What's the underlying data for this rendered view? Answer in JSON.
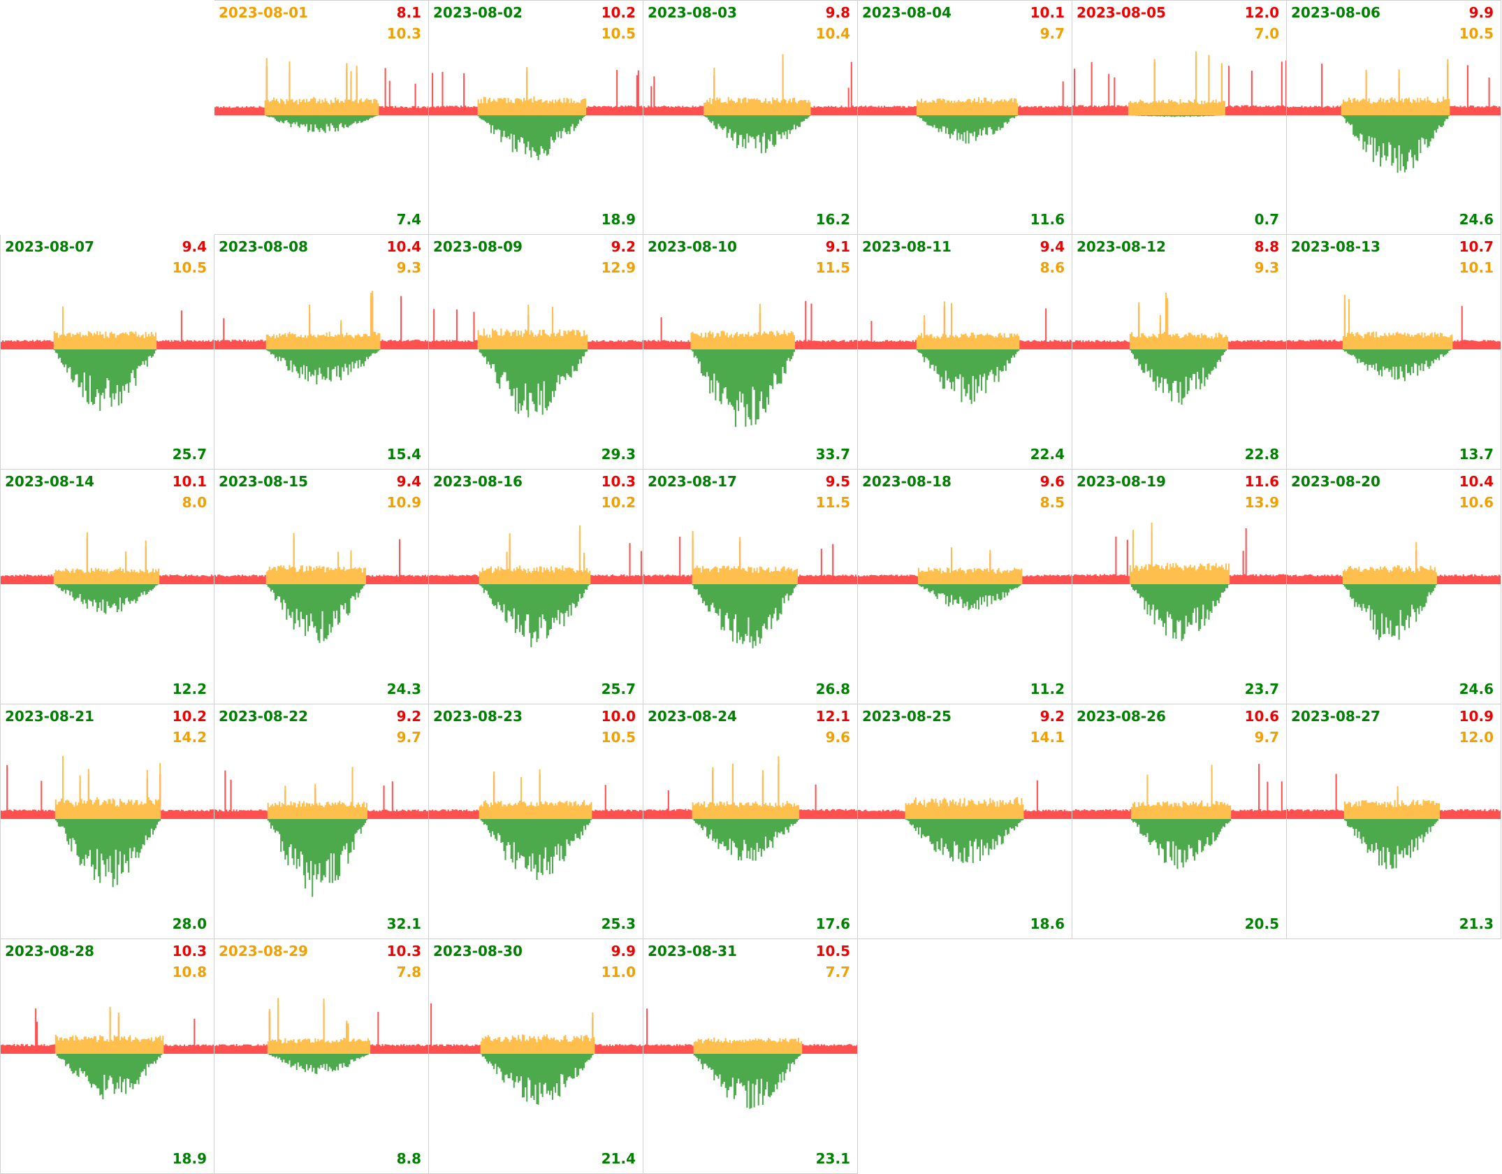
{
  "colors": {
    "consumption": "#ff5050",
    "self_consumption": "#ffbf4d",
    "production": "#4caa4c",
    "label_red": "#ee0000",
    "label_orange": "#f0a000",
    "label_green": "#008000",
    "grid_line": "#d0d0d0"
  },
  "chart_data": {
    "type": "area",
    "layout": "calendar-grid",
    "month": "2023-08",
    "columns": 7,
    "first_day_column": 1,
    "metrics": [
      "red_value",
      "orange_value",
      "green_value"
    ],
    "days": [
      {
        "date": "2023-08-01",
        "date_color": "orange",
        "red": "8.1",
        "orange": "10.3",
        "green": "7.4"
      },
      {
        "date": "2023-08-02",
        "date_color": "green",
        "red": "10.2",
        "orange": "10.5",
        "green": "18.9"
      },
      {
        "date": "2023-08-03",
        "date_color": "green",
        "red": "9.8",
        "orange": "10.4",
        "green": "16.2"
      },
      {
        "date": "2023-08-04",
        "date_color": "green",
        "red": "10.1",
        "orange": "9.7",
        "green": "11.6"
      },
      {
        "date": "2023-08-05",
        "date_color": "red",
        "red": "12.0",
        "orange": "7.0",
        "green": "0.7"
      },
      {
        "date": "2023-08-06",
        "date_color": "green",
        "red": "9.9",
        "orange": "10.5",
        "green": "24.6"
      },
      {
        "date": "2023-08-07",
        "date_color": "green",
        "red": "9.4",
        "orange": "10.5",
        "green": "25.7"
      },
      {
        "date": "2023-08-08",
        "date_color": "green",
        "red": "10.4",
        "orange": "9.3",
        "green": "15.4"
      },
      {
        "date": "2023-08-09",
        "date_color": "green",
        "red": "9.2",
        "orange": "12.9",
        "green": "29.3"
      },
      {
        "date": "2023-08-10",
        "date_color": "green",
        "red": "9.1",
        "orange": "11.5",
        "green": "33.7"
      },
      {
        "date": "2023-08-11",
        "date_color": "green",
        "red": "9.4",
        "orange": "8.6",
        "green": "22.4"
      },
      {
        "date": "2023-08-12",
        "date_color": "green",
        "red": "8.8",
        "orange": "9.3",
        "green": "22.8"
      },
      {
        "date": "2023-08-13",
        "date_color": "green",
        "red": "10.7",
        "orange": "10.1",
        "green": "13.7"
      },
      {
        "date": "2023-08-14",
        "date_color": "green",
        "red": "10.1",
        "orange": "8.0",
        "green": "12.2"
      },
      {
        "date": "2023-08-15",
        "date_color": "green",
        "red": "9.4",
        "orange": "10.9",
        "green": "24.3"
      },
      {
        "date": "2023-08-16",
        "date_color": "green",
        "red": "10.3",
        "orange": "10.2",
        "green": "25.7"
      },
      {
        "date": "2023-08-17",
        "date_color": "green",
        "red": "9.5",
        "orange": "11.5",
        "green": "26.8"
      },
      {
        "date": "2023-08-18",
        "date_color": "green",
        "red": "9.6",
        "orange": "8.5",
        "green": "11.2"
      },
      {
        "date": "2023-08-19",
        "date_color": "green",
        "red": "11.6",
        "orange": "13.9",
        "green": "23.7"
      },
      {
        "date": "2023-08-20",
        "date_color": "green",
        "red": "10.4",
        "orange": "10.6",
        "green": "24.6"
      },
      {
        "date": "2023-08-21",
        "date_color": "green",
        "red": "10.2",
        "orange": "14.2",
        "green": "28.0"
      },
      {
        "date": "2023-08-22",
        "date_color": "green",
        "red": "9.2",
        "orange": "9.7",
        "green": "32.1"
      },
      {
        "date": "2023-08-23",
        "date_color": "green",
        "red": "10.0",
        "orange": "10.5",
        "green": "25.3"
      },
      {
        "date": "2023-08-24",
        "date_color": "green",
        "red": "12.1",
        "orange": "9.6",
        "green": "17.6"
      },
      {
        "date": "2023-08-25",
        "date_color": "green",
        "red": "9.2",
        "orange": "14.1",
        "green": "18.6"
      },
      {
        "date": "2023-08-26",
        "date_color": "green",
        "red": "10.6",
        "orange": "9.7",
        "green": "20.5"
      },
      {
        "date": "2023-08-27",
        "date_color": "green",
        "red": "10.9",
        "orange": "12.0",
        "green": "21.3"
      },
      {
        "date": "2023-08-28",
        "date_color": "green",
        "red": "10.3",
        "orange": "10.8",
        "green": "18.9"
      },
      {
        "date": "2023-08-29",
        "date_color": "orange",
        "red": "10.3",
        "orange": "7.8",
        "green": "8.8"
      },
      {
        "date": "2023-08-30",
        "date_color": "green",
        "red": "9.9",
        "orange": "11.0",
        "green": "21.4"
      },
      {
        "date": "2023-08-31",
        "date_color": "green",
        "red": "10.5",
        "orange": "7.7",
        "green": "23.1"
      }
    ]
  }
}
